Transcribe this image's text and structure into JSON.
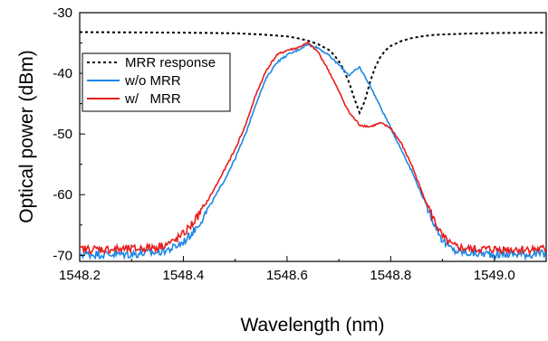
{
  "chart_data": {
    "type": "line",
    "xlabel": "Wavelength (nm)",
    "ylabel": "Optical power (dBm)",
    "xlim": [
      1548.2,
      1549.1
    ],
    "ylim": [
      -71,
      -30
    ],
    "x_ticks": [
      1548.2,
      1548.4,
      1548.6,
      1548.8,
      1549.0
    ],
    "x_tick_labels": [
      "1548.2",
      "1548.4",
      "1548.6",
      "1548.8",
      "1549.0"
    ],
    "y_ticks": [
      -70,
      -60,
      -50,
      -40,
      -30
    ],
    "y_tick_labels": [
      "-70",
      "-60",
      "-50",
      "-40",
      "-30"
    ],
    "grid": false,
    "legend_position": "top-left",
    "series": [
      {
        "name": "MRR response",
        "color": "#000000",
        "style": "dashed",
        "x": [
          1548.2,
          1548.3,
          1548.4,
          1548.5,
          1548.55,
          1548.6,
          1548.62,
          1548.64,
          1548.66,
          1548.68,
          1548.69,
          1548.7,
          1548.71,
          1548.72,
          1548.73,
          1548.74,
          1548.75,
          1548.76,
          1548.77,
          1548.78,
          1548.79,
          1548.8,
          1548.82,
          1548.84,
          1548.86,
          1548.88,
          1548.9,
          1548.95,
          1549.0,
          1549.1
        ],
        "y": [
          -33.2,
          -33.25,
          -33.3,
          -33.4,
          -33.6,
          -33.9,
          -34.2,
          -34.6,
          -35.2,
          -36.1,
          -36.9,
          -38.0,
          -39.5,
          -41.6,
          -44.2,
          -46.5,
          -44.6,
          -41.5,
          -39.0,
          -37.3,
          -36.2,
          -35.5,
          -34.7,
          -34.2,
          -33.9,
          -33.7,
          -33.6,
          -33.45,
          -33.35,
          -33.3
        ]
      },
      {
        "name": "w/o MRR",
        "color": "#1e87e5",
        "style": "solid",
        "x": [
          1548.2,
          1548.25,
          1548.3,
          1548.35,
          1548.38,
          1548.4,
          1548.42,
          1548.44,
          1548.46,
          1548.48,
          1548.5,
          1548.52,
          1548.54,
          1548.56,
          1548.58,
          1548.6,
          1548.62,
          1548.64,
          1548.66,
          1548.68,
          1548.7,
          1548.72,
          1548.74,
          1548.76,
          1548.78,
          1548.8,
          1548.82,
          1548.84,
          1548.86,
          1548.88,
          1548.9,
          1548.92,
          1548.95,
          1549.0,
          1549.05,
          1549.1
        ],
        "y": [
          -69.8,
          -69.8,
          -69.8,
          -69.5,
          -68.8,
          -67.8,
          -66.0,
          -63.5,
          -60.5,
          -57.5,
          -54.0,
          -50.0,
          -45.0,
          -40.8,
          -38.2,
          -37.0,
          -36.2,
          -35.2,
          -35.8,
          -37.0,
          -38.6,
          -40.3,
          -39.0,
          -42.0,
          -45.5,
          -49.0,
          -52.5,
          -56.0,
          -60.0,
          -64.0,
          -67.5,
          -69.2,
          -69.6,
          -69.8,
          -69.8,
          -69.8
        ]
      },
      {
        "name": "w/   MRR",
        "color": "#e81c1c",
        "style": "solid",
        "x": [
          1548.2,
          1548.25,
          1548.3,
          1548.35,
          1548.38,
          1548.4,
          1548.42,
          1548.44,
          1548.46,
          1548.48,
          1548.5,
          1548.52,
          1548.54,
          1548.56,
          1548.58,
          1548.6,
          1548.62,
          1548.64,
          1548.66,
          1548.68,
          1548.7,
          1548.72,
          1548.74,
          1548.76,
          1548.78,
          1548.8,
          1548.82,
          1548.84,
          1548.86,
          1548.88,
          1548.9,
          1548.92,
          1548.95,
          1549.0,
          1549.05,
          1549.1
        ],
        "y": [
          -69.0,
          -69.0,
          -69.0,
          -68.6,
          -67.8,
          -66.5,
          -64.5,
          -62.0,
          -59.0,
          -55.8,
          -52.5,
          -48.5,
          -43.5,
          -39.5,
          -37.0,
          -36.2,
          -35.8,
          -35.0,
          -36.5,
          -39.5,
          -43.0,
          -46.5,
          -48.5,
          -48.8,
          -48.2,
          -49.0,
          -51.5,
          -55.0,
          -59.5,
          -63.5,
          -67.0,
          -68.5,
          -69.0,
          -69.0,
          -69.0,
          -69.0
        ]
      }
    ]
  }
}
